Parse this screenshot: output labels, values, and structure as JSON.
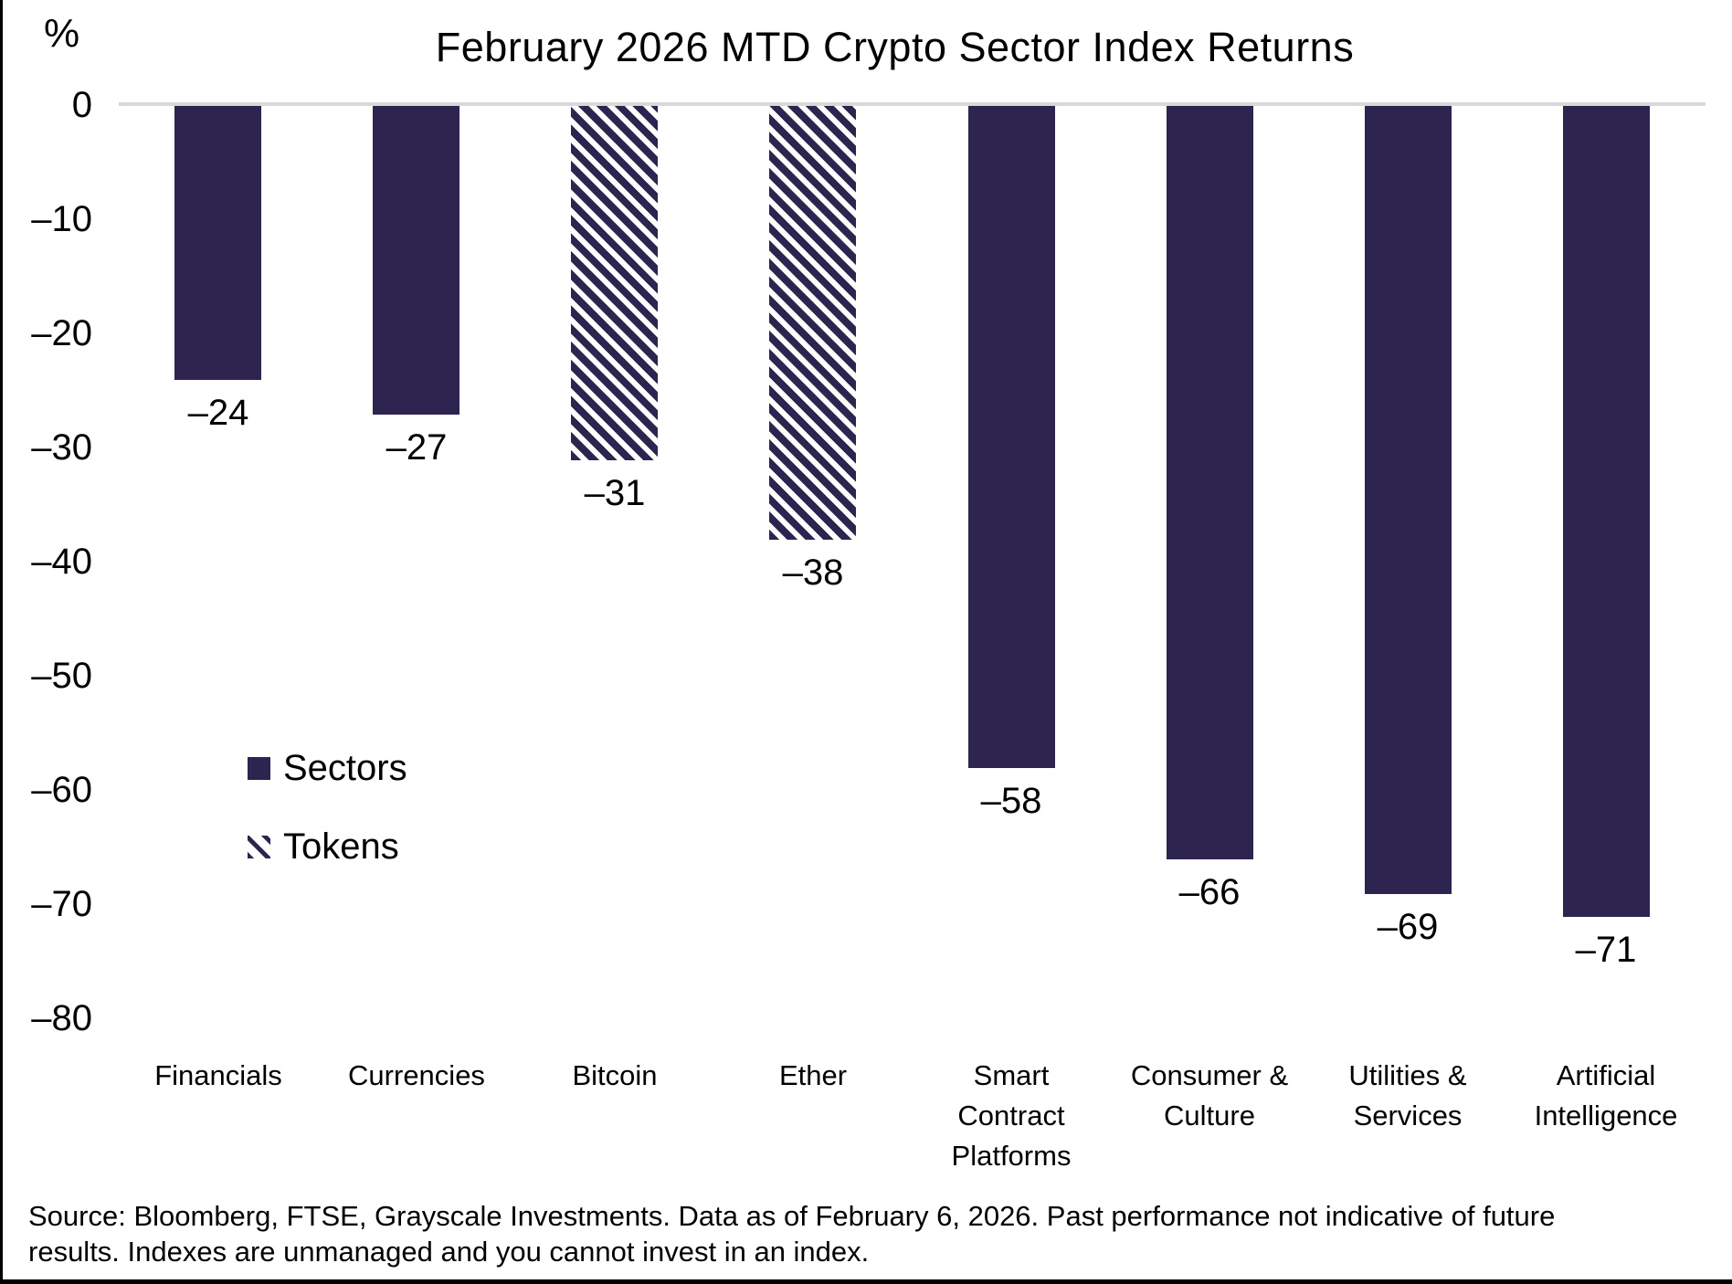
{
  "title": "February 2026 MTD Crypto Sector Index Returns",
  "y_axis": {
    "unit": "%",
    "tick_labels": [
      "0",
      "–10",
      "–20",
      "–30",
      "–40",
      "–50",
      "–60",
      "–70",
      "–80"
    ]
  },
  "legend": {
    "items": [
      {
        "label": "Sectors",
        "style": "solid"
      },
      {
        "label": "Tokens",
        "style": "hatched"
      }
    ]
  },
  "source": {
    "text": "Source: Bloomberg, FTSE, Grayscale Investments. Data as of February 6, 2026. Past performance not indicative of future results. Indexes are unmanaged and you cannot invest in an index."
  },
  "chart_data": {
    "type": "bar",
    "title": "February 2026 MTD Crypto Sector Index Returns",
    "unit": "%",
    "categories": [
      "Financials",
      "Currencies",
      "Bitcoin",
      "Ether",
      "Smart Contract Platforms",
      "Consumer & Culture",
      "Utilities & Services",
      "Artificial Intelligence"
    ],
    "category_lines": [
      "Financials",
      "Currencies",
      "Bitcoin",
      "Ether",
      "Smart\nContract\nPlatforms",
      "Consumer &\nCulture",
      "Utilities &\nServices",
      "Artificial\nIntelligence"
    ],
    "values": [
      -24,
      -27,
      -31,
      -38,
      -58,
      -66,
      -69,
      -71
    ],
    "value_labels": [
      "–24",
      "–27",
      "–31",
      "–38",
      "–58",
      "–66",
      "–69",
      "–71"
    ],
    "bar_styles": [
      "solid",
      "solid",
      "hatched",
      "hatched",
      "solid",
      "solid",
      "solid",
      "solid"
    ],
    "series_legend": [
      "Sectors",
      "Tokens"
    ],
    "ylim": [
      -80,
      0
    ],
    "yticks": [
      0,
      -10,
      -20,
      -30,
      -40,
      -50,
      -60,
      -70,
      -80
    ],
    "grid": false,
    "legend_position": "middle-left",
    "colors": {
      "bar": "#2E2450",
      "baseline": "#D9D9D9",
      "text": "#000000"
    }
  }
}
